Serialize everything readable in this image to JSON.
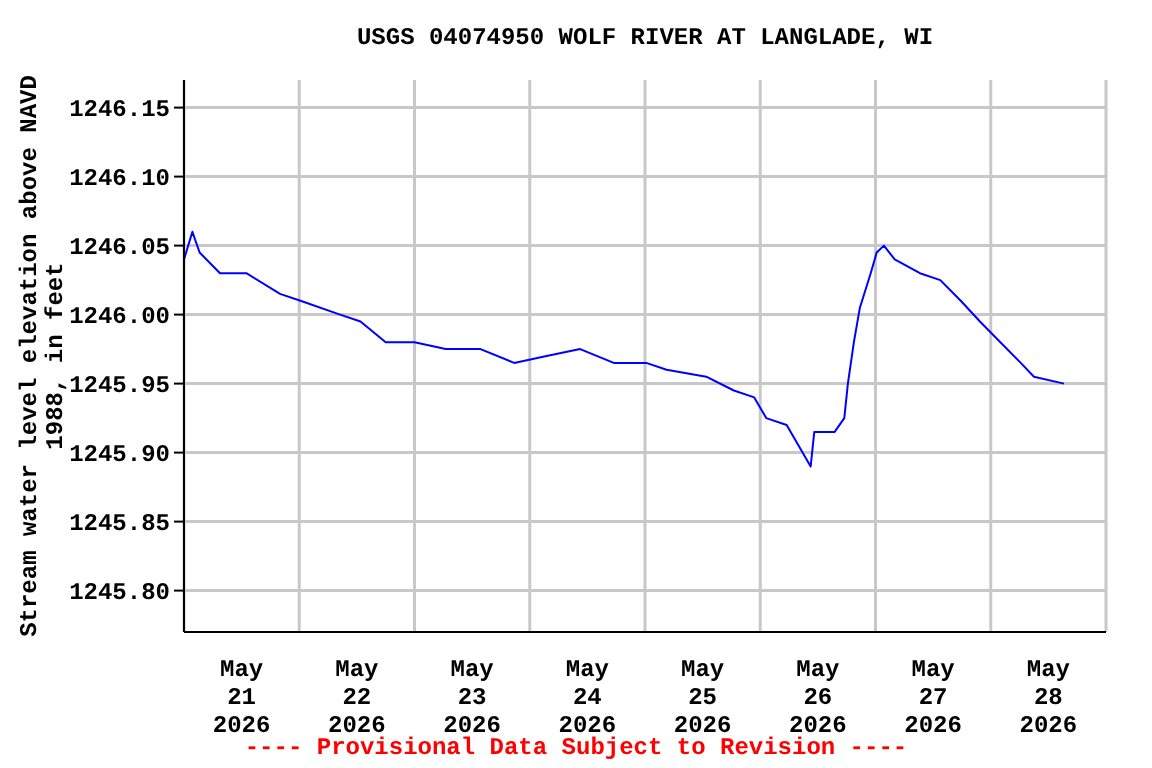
{
  "chart_data": {
    "type": "line",
    "title": "USGS 04074950 WOLF RIVER AT LANGLADE, WI",
    "ylabel": "Stream water level elevation above NAVD 1988, in feet",
    "annotations": [
      "---- Provisional Data Subject to Revision ----"
    ],
    "x": [
      "2026-05-21T00:00",
      "2026-05-21T01:45",
      "2026-05-21T03:15",
      "2026-05-21T07:30",
      "2026-05-21T13:00",
      "2026-05-21T20:00",
      "2026-05-22T00:15",
      "2026-05-22T08:30",
      "2026-05-22T12:45",
      "2026-05-22T18:00",
      "2026-05-23T00:00",
      "2026-05-23T06:30",
      "2026-05-23T13:45",
      "2026-05-23T20:45",
      "2026-05-24T03:30",
      "2026-05-24T10:30",
      "2026-05-24T17:30",
      "2026-05-25T00:15",
      "2026-05-25T04:30",
      "2026-05-25T12:45",
      "2026-05-25T18:30",
      "2026-05-25T22:45",
      "2026-05-26T01:15",
      "2026-05-26T05:30",
      "2026-05-26T10:30",
      "2026-05-26T11:15",
      "2026-05-26T15:30",
      "2026-05-26T17:30",
      "2026-05-26T18:15",
      "2026-05-26T19:30",
      "2026-05-26T20:45",
      "2026-05-26T23:00",
      "2026-05-27T00:15",
      "2026-05-27T01:45",
      "2026-05-27T04:00",
      "2026-05-27T09:15",
      "2026-05-27T13:30",
      "2026-05-27T17:45",
      "2026-05-27T21:45",
      "2026-05-28T02:00",
      "2026-05-28T06:15",
      "2026-05-28T09:00",
      "2026-05-28T15:15"
    ],
    "series": [
      {
        "color": "#0000ff",
        "values": [
          1246.04,
          1246.06,
          1246.045,
          1246.03,
          1246.03,
          1246.015,
          1246.01,
          1246.0,
          1245.995,
          1245.98,
          1245.98,
          1245.975,
          1245.975,
          1245.965,
          1245.97,
          1245.975,
          1245.965,
          1245.965,
          1245.96,
          1245.955,
          1245.945,
          1245.94,
          1245.925,
          1245.92,
          1245.89,
          1245.915,
          1245.915,
          1245.925,
          1245.95,
          1245.98,
          1246.005,
          1246.03,
          1246.045,
          1246.05,
          1246.04,
          1246.03,
          1246.025,
          1246.01,
          1245.995,
          1245.98,
          1245.965,
          1245.955,
          1245.95
        ]
      }
    ],
    "xlim": [
      "2026-05-21T00:00",
      "2026-05-29T00:00"
    ],
    "xticks": [
      {
        "value": "2026-05-21T00:00",
        "label": null
      },
      {
        "value": "2026-05-21T12:00",
        "label": "May 21 2026"
      },
      {
        "value": "2026-05-22T00:00",
        "label": null
      },
      {
        "value": "2026-05-22T12:00",
        "label": "May 22 2026"
      },
      {
        "value": "2026-05-23T00:00",
        "label": null
      },
      {
        "value": "2026-05-23T12:00",
        "label": "May 23 2026"
      },
      {
        "value": "2026-05-24T00:00",
        "label": null
      },
      {
        "value": "2026-05-24T12:00",
        "label": "May 24 2026"
      },
      {
        "value": "2026-05-25T00:00",
        "label": null
      },
      {
        "value": "2026-05-25T12:00",
        "label": "May 25 2026"
      },
      {
        "value": "2026-05-26T00:00",
        "label": null
      },
      {
        "value": "2026-05-26T12:00",
        "label": "May 26 2026"
      },
      {
        "value": "2026-05-27T00:00",
        "label": null
      },
      {
        "value": "2026-05-27T12:00",
        "label": "May 27 2026"
      },
      {
        "value": "2026-05-28T00:00",
        "label": null
      },
      {
        "value": "2026-05-28T12:00",
        "label": "May 28 2026"
      },
      {
        "value": "2026-05-29T00:00",
        "label": null
      }
    ],
    "ylim": [
      1245.77,
      1246.17
    ],
    "yticks": [
      {
        "value": 1245.8,
        "label": "1245.80"
      },
      1245.85,
      {
        "value": 1245.9,
        "label": "1245.90"
      },
      1245.95,
      {
        "value": 1246.0,
        "label": "1246.00"
      },
      1246.05,
      {
        "value": 1246.1,
        "label": "1246.10"
      },
      1246.15
    ],
    "grid": true
  }
}
